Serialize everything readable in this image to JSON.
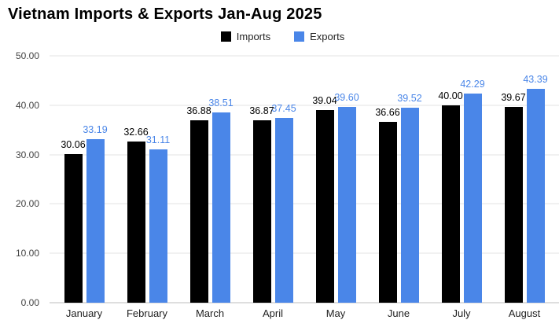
{
  "chart_data": {
    "type": "bar",
    "title": "Vietnam Imports & Exports Jan-Aug 2025",
    "categories": [
      "January",
      "February",
      "March",
      "April",
      "May",
      "June",
      "July",
      "August"
    ],
    "series": [
      {
        "name": "Imports",
        "color": "#000000",
        "label_color": "#000000",
        "values": [
          30.06,
          32.66,
          36.88,
          36.87,
          39.04,
          36.66,
          40.0,
          39.67
        ]
      },
      {
        "name": "Exports",
        "color": "#4a86e8",
        "label_color": "#4a86e8",
        "values": [
          33.19,
          31.11,
          38.51,
          37.45,
          39.6,
          39.52,
          42.29,
          43.39
        ]
      }
    ],
    "ylim": [
      0,
      50
    ],
    "y_ticks": [
      0,
      10,
      20,
      30,
      40,
      50
    ],
    "y_tick_format": "2-decimals",
    "grid": true,
    "legend_position": "top"
  }
}
